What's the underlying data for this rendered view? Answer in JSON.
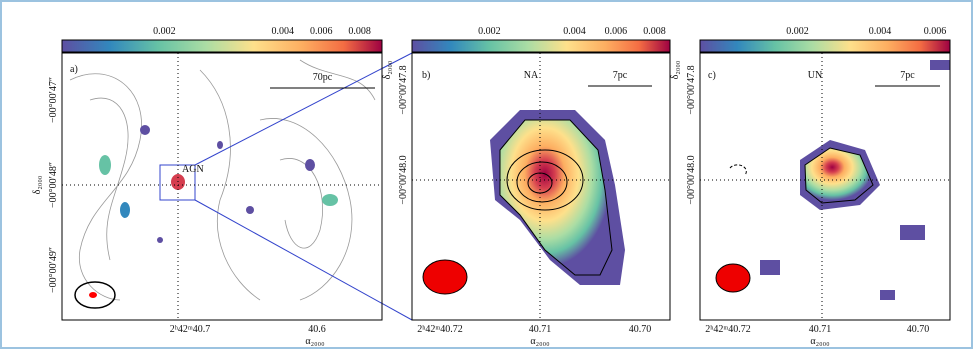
{
  "panels": [
    {
      "label": "a)",
      "scale_bar": "70pc",
      "annotation": "AGN",
      "colorbar_ticks": [
        "0.002",
        "0.004",
        "0.006",
        "0.008"
      ],
      "y_axis_label": "δ₂₀₀₀",
      "y_ticks": [
        "−00°00′47″",
        "−00°00′48″",
        "−00°00′49″"
      ],
      "x_axis_label": "α₂₀₀₀",
      "x_ticks": [
        "2ʰ42ᵐ40.7",
        "40.6"
      ]
    },
    {
      "label": "b)",
      "title": "NA",
      "scale_bar": "7pc",
      "colorbar_ticks": [
        "0.002",
        "0.004",
        "0.006",
        "0.008"
      ],
      "y_axis_label": "δ₂₀₀₀",
      "y_ticks": [
        "−00°00′47.8",
        "−00°00′48.0"
      ],
      "x_axis_label": "α₂₀₀₀",
      "x_ticks": [
        "2ʰ42ᵐ40.72",
        "40.71",
        "40.70"
      ]
    },
    {
      "label": "c)",
      "title": "UN",
      "scale_bar": "7pc",
      "colorbar_ticks": [
        "0.002",
        "0.004",
        "0.006"
      ],
      "y_axis_label": "δ₂₀₀₀",
      "y_ticks": [
        "−00°00′47.8",
        "−00°00′48.0"
      ],
      "x_axis_label": "α₂₀₀₀",
      "x_ticks": [
        "2ʰ42ᵐ40.72",
        "40.71",
        "40.70"
      ]
    }
  ]
}
